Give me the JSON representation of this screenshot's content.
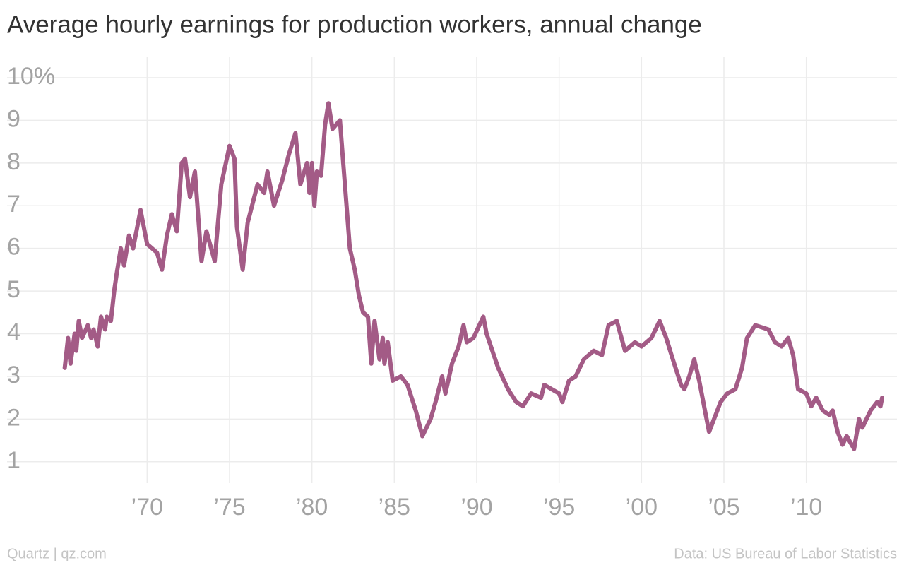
{
  "chart_data": {
    "type": "line",
    "title": "Average hourly earnings for production workers, annual change",
    "source": "Data: US Bureau of Labor Statistics",
    "credit": "Quartz | qz.com",
    "x": [
      1965.0,
      1965.2,
      1965.35,
      1965.6,
      1965.7,
      1965.85,
      1966.05,
      1966.4,
      1966.6,
      1966.75,
      1967.0,
      1967.2,
      1967.45,
      1967.55,
      1967.8,
      1968.0,
      1968.15,
      1968.4,
      1968.6,
      1968.9,
      1969.15,
      1969.6,
      1970.0,
      1970.6,
      1970.9,
      1971.2,
      1971.5,
      1971.8,
      1972.1,
      1972.3,
      1972.6,
      1972.9,
      1973.3,
      1973.6,
      1974.1,
      1974.5,
      1975.0,
      1975.3,
      1975.45,
      1975.8,
      1976.1,
      1976.7,
      1977.1,
      1977.3,
      1977.7,
      1978.2,
      1978.6,
      1979.0,
      1979.3,
      1979.7,
      1979.85,
      1980.0,
      1980.15,
      1980.3,
      1980.55,
      1980.8,
      1981.0,
      1981.25,
      1981.7,
      1981.9,
      1982.1,
      1982.3,
      1982.6,
      1982.85,
      1983.1,
      1983.4,
      1983.6,
      1983.8,
      1984.1,
      1984.3,
      1984.4,
      1984.6,
      1984.9,
      1985.4,
      1985.8,
      1986.3,
      1986.7,
      1987.2,
      1987.5,
      1987.9,
      1988.1,
      1988.5,
      1988.9,
      1989.2,
      1989.4,
      1989.8,
      1990.4,
      1990.6,
      1991.3,
      1991.9,
      1992.4,
      1992.8,
      1993.3,
      1993.9,
      1994.1,
      1995.0,
      1995.2,
      1995.6,
      1996.0,
      1996.5,
      1997.1,
      1997.6,
      1998.0,
      1998.5,
      1999.0,
      1999.6,
      2000.0,
      2000.6,
      2001.1,
      2001.5,
      2001.9,
      2002.4,
      2002.6,
      2002.9,
      2003.2,
      2003.5,
      2003.9,
      2004.1,
      2004.4,
      2004.8,
      2005.2,
      2005.7,
      2006.1,
      2006.4,
      2006.9,
      2007.7,
      2008.1,
      2008.5,
      2008.9,
      2009.2,
      2009.5,
      2010.0,
      2010.3,
      2010.6,
      2011.0,
      2011.4,
      2011.6,
      2011.9,
      2012.2,
      2012.45,
      2012.9,
      2013.2,
      2013.4,
      2013.9,
      2014.3,
      2014.5,
      2014.6
    ],
    "series": [
      {
        "name": "Annual change",
        "color": "#a35b86",
        "values": [
          3.2,
          3.9,
          3.3,
          4.0,
          3.6,
          4.3,
          3.9,
          4.2,
          3.9,
          4.1,
          3.7,
          4.4,
          4.1,
          4.4,
          4.3,
          5.0,
          5.4,
          6.0,
          5.6,
          6.3,
          6.0,
          6.9,
          6.1,
          5.9,
          5.5,
          6.3,
          6.8,
          6.4,
          8.0,
          8.1,
          7.2,
          7.8,
          5.7,
          6.4,
          5.7,
          7.5,
          8.4,
          8.1,
          6.5,
          5.5,
          6.6,
          7.5,
          7.3,
          7.8,
          7.0,
          7.6,
          8.2,
          8.7,
          7.5,
          8.0,
          7.3,
          8.0,
          7.0,
          7.8,
          7.7,
          8.9,
          9.4,
          8.8,
          9.0,
          8.0,
          7.0,
          6.0,
          5.5,
          4.9,
          4.5,
          4.4,
          3.3,
          4.3,
          3.4,
          3.9,
          3.3,
          3.8,
          2.9,
          3.0,
          2.8,
          2.2,
          1.6,
          2.0,
          2.4,
          3.0,
          2.6,
          3.3,
          3.7,
          4.2,
          3.8,
          3.9,
          4.4,
          4.0,
          3.2,
          2.7,
          2.4,
          2.3,
          2.6,
          2.5,
          2.8,
          2.6,
          2.4,
          2.9,
          3.0,
          3.4,
          3.6,
          3.5,
          4.2,
          4.3,
          3.6,
          3.8,
          3.7,
          3.9,
          4.3,
          3.9,
          3.4,
          2.8,
          2.7,
          3.0,
          3.4,
          2.9,
          2.1,
          1.7,
          2.0,
          2.4,
          2.6,
          2.7,
          3.2,
          3.9,
          4.2,
          4.1,
          3.8,
          3.7,
          3.9,
          3.5,
          2.7,
          2.6,
          2.3,
          2.5,
          2.2,
          2.1,
          2.2,
          1.7,
          1.4,
          1.6,
          1.3,
          2.0,
          1.8,
          2.2,
          2.4,
          2.3,
          2.5
        ]
      }
    ],
    "xlim": [
      1961.5,
      2015.5
    ],
    "xticks": [
      {
        "value": 1970,
        "label": "’70"
      },
      {
        "value": 1975,
        "label": "’75"
      },
      {
        "value": 1980,
        "label": "’80"
      },
      {
        "value": 1985,
        "label": "’85"
      },
      {
        "value": 1990,
        "label": "’90"
      },
      {
        "value": 1995,
        "label": "’95"
      },
      {
        "value": 2000,
        "label": "’00"
      },
      {
        "value": 2005,
        "label": "’05"
      },
      {
        "value": 2010,
        "label": "’10"
      }
    ],
    "ylim": [
      0.5,
      10
    ],
    "yticks": [
      1,
      2,
      3,
      4,
      5,
      6,
      7,
      8,
      9,
      {
        "value": 10,
        "label": "10%"
      }
    ],
    "grid": true
  }
}
